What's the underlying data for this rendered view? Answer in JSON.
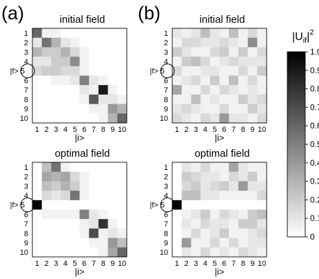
{
  "figure": {
    "panel_a_label": "(a)",
    "panel_b_label": "(b)"
  },
  "colorbar": {
    "label": "|Uᵢf|²",
    "label_main": "|U",
    "label_sub": "if",
    "label_close": "|",
    "label_sup": "2",
    "ticks": [
      "1.0",
      "0.9",
      "0.8",
      "0.7",
      "0.6",
      "0.5",
      "0.4",
      "0.3",
      "0.2",
      "0.1",
      "0"
    ],
    "range": [
      0,
      1
    ],
    "colormap": [
      "#ffffff",
      "#000000"
    ]
  },
  "chart_data": [
    {
      "type": "heatmap",
      "panel": "(a)",
      "title": "initial field",
      "xlabel": "|i>",
      "ylabel": "",
      "marked_row_label": "|f> 5",
      "x_ticks": [
        "1",
        "2",
        "3",
        "4",
        "5",
        "6",
        "7",
        "8",
        "9",
        "10"
      ],
      "y_ticks": [
        "1",
        "2",
        "3",
        "4",
        "5",
        "6",
        "7",
        "8",
        "9",
        "10"
      ],
      "circle_marker_row": 5,
      "values": [
        [
          0.6,
          0.05,
          0.05,
          0.0,
          0.0,
          0.0,
          0.0,
          0.0,
          0.0,
          0.0
        ],
        [
          0.1,
          0.55,
          0.3,
          0.1,
          0.05,
          0.0,
          0.0,
          0.0,
          0.0,
          0.0
        ],
        [
          0.3,
          0.2,
          0.2,
          0.3,
          0.15,
          0.05,
          0.0,
          0.0,
          0.0,
          0.0
        ],
        [
          0.1,
          0.1,
          0.2,
          0.2,
          0.45,
          0.05,
          0.0,
          0.0,
          0.0,
          0.0
        ],
        [
          0.15,
          0.2,
          0.2,
          0.15,
          0.15,
          0.05,
          0.0,
          0.0,
          0.0,
          0.0
        ],
        [
          0.0,
          0.0,
          0.05,
          0.05,
          0.1,
          0.5,
          0.1,
          0.05,
          0.0,
          0.0
        ],
        [
          0.0,
          0.0,
          0.0,
          0.0,
          0.0,
          0.1,
          0.05,
          0.9,
          0.05,
          0.0
        ],
        [
          0.0,
          0.0,
          0.0,
          0.0,
          0.0,
          0.05,
          0.65,
          0.1,
          0.1,
          0.05
        ],
        [
          0.0,
          0.0,
          0.0,
          0.0,
          0.0,
          0.0,
          0.05,
          0.05,
          0.4,
          0.3
        ],
        [
          0.0,
          0.0,
          0.0,
          0.0,
          0.0,
          0.0,
          0.0,
          0.05,
          0.3,
          0.6
        ]
      ]
    },
    {
      "type": "heatmap",
      "panel": "(b)",
      "title": "initial field",
      "xlabel": "|i>",
      "ylabel": "",
      "marked_row_label": "|f> 5",
      "x_ticks": [
        "1",
        "2",
        "3",
        "4",
        "5",
        "6",
        "7",
        "8",
        "9",
        "10"
      ],
      "y_ticks": [
        "1",
        "2",
        "3",
        "4",
        "5",
        "6",
        "7",
        "8",
        "9",
        "10"
      ],
      "circle_marker_row": 5,
      "values": [
        [
          0.1,
          0.05,
          0.1,
          0.25,
          0.1,
          0.05,
          0.25,
          0.05,
          0.15,
          0.05
        ],
        [
          0.05,
          0.15,
          0.15,
          0.1,
          0.1,
          0.15,
          0.1,
          0.05,
          0.45,
          0.05
        ],
        [
          0.2,
          0.1,
          0.05,
          0.05,
          0.15,
          0.2,
          0.05,
          0.2,
          0.05,
          0.15
        ],
        [
          0.05,
          0.2,
          0.25,
          0.15,
          0.05,
          0.1,
          0.15,
          0.1,
          0.1,
          0.1
        ],
        [
          0.15,
          0.05,
          0.05,
          0.1,
          0.1,
          0.05,
          0.05,
          0.15,
          0.05,
          0.2
        ],
        [
          0.05,
          0.1,
          0.15,
          0.05,
          0.2,
          0.05,
          0.25,
          0.05,
          0.15,
          0.05
        ],
        [
          0.35,
          0.05,
          0.05,
          0.15,
          0.05,
          0.15,
          0.1,
          0.05,
          0.1,
          0.05
        ],
        [
          0.05,
          0.05,
          0.25,
          0.05,
          0.1,
          0.05,
          0.05,
          0.2,
          0.1,
          0.15
        ],
        [
          0.1,
          0.15,
          0.1,
          0.05,
          0.05,
          0.15,
          0.05,
          0.05,
          0.2,
          0.1
        ],
        [
          0.15,
          0.1,
          0.05,
          0.15,
          0.1,
          0.4,
          0.1,
          0.1,
          0.05,
          0.15
        ]
      ]
    },
    {
      "type": "heatmap",
      "panel": "(a)",
      "title": "optimal field",
      "xlabel": "|i>",
      "ylabel": "",
      "marked_row_label": "|f> 5",
      "x_ticks": [
        "1",
        "2",
        "3",
        "4",
        "5",
        "6",
        "7",
        "8",
        "9",
        "10"
      ],
      "y_ticks": [
        "1",
        "2",
        "3",
        "4",
        "5",
        "6",
        "7",
        "8",
        "9",
        "10"
      ],
      "circle_marker_row": 5,
      "values": [
        [
          0.0,
          0.25,
          0.55,
          0.05,
          0.0,
          0.0,
          0.0,
          0.0,
          0.0,
          0.0
        ],
        [
          0.0,
          0.35,
          0.3,
          0.35,
          0.15,
          0.05,
          0.0,
          0.0,
          0.0,
          0.0
        ],
        [
          0.0,
          0.25,
          0.2,
          0.3,
          0.2,
          0.05,
          0.0,
          0.0,
          0.0,
          0.0
        ],
        [
          0.0,
          0.15,
          0.1,
          0.15,
          0.55,
          0.05,
          0.0,
          0.0,
          0.0,
          0.0
        ],
        [
          0.98,
          0.0,
          0.0,
          0.0,
          0.0,
          0.0,
          0.0,
          0.0,
          0.0,
          0.0
        ],
        [
          0.0,
          0.05,
          0.05,
          0.05,
          0.05,
          0.5,
          0.1,
          0.05,
          0.0,
          0.0
        ],
        [
          0.0,
          0.0,
          0.0,
          0.0,
          0.0,
          0.05,
          0.1,
          0.8,
          0.05,
          0.0
        ],
        [
          0.0,
          0.0,
          0.0,
          0.0,
          0.0,
          0.05,
          0.7,
          0.05,
          0.1,
          0.05
        ],
        [
          0.0,
          0.0,
          0.0,
          0.0,
          0.0,
          0.0,
          0.05,
          0.05,
          0.4,
          0.25
        ],
        [
          0.0,
          0.0,
          0.0,
          0.0,
          0.0,
          0.0,
          0.0,
          0.05,
          0.35,
          0.6
        ]
      ]
    },
    {
      "type": "heatmap",
      "panel": "(b)",
      "title": "optimal field",
      "xlabel": "|i>",
      "ylabel": "",
      "marked_row_label": "|f> 5",
      "x_ticks": [
        "1",
        "2",
        "3",
        "4",
        "5",
        "6",
        "7",
        "8",
        "9",
        "10"
      ],
      "y_ticks": [
        "1",
        "2",
        "3",
        "4",
        "5",
        "6",
        "7",
        "8",
        "9",
        "10"
      ],
      "circle_marker_row": 5,
      "values": [
        [
          0.0,
          0.1,
          0.05,
          0.15,
          0.05,
          0.05,
          0.35,
          0.1,
          0.05,
          0.05
        ],
        [
          0.0,
          0.2,
          0.15,
          0.1,
          0.1,
          0.05,
          0.15,
          0.1,
          0.2,
          0.05
        ],
        [
          0.0,
          0.15,
          0.2,
          0.1,
          0.15,
          0.2,
          0.1,
          0.4,
          0.1,
          0.1
        ],
        [
          0.0,
          0.25,
          0.25,
          0.1,
          0.1,
          0.05,
          0.05,
          0.05,
          0.05,
          0.15
        ],
        [
          0.98,
          0.0,
          0.0,
          0.0,
          0.0,
          0.0,
          0.0,
          0.0,
          0.0,
          0.0
        ],
        [
          0.0,
          0.05,
          0.1,
          0.2,
          0.05,
          0.15,
          0.1,
          0.05,
          0.2,
          0.25
        ],
        [
          0.0,
          0.1,
          0.05,
          0.15,
          0.1,
          0.1,
          0.05,
          0.2,
          0.2,
          0.1
        ],
        [
          0.0,
          0.05,
          0.15,
          0.05,
          0.1,
          0.2,
          0.05,
          0.05,
          0.1,
          0.15
        ],
        [
          0.0,
          0.4,
          0.05,
          0.05,
          0.15,
          0.05,
          0.15,
          0.05,
          0.1,
          0.1
        ],
        [
          0.0,
          0.1,
          0.05,
          0.15,
          0.05,
          0.1,
          0.05,
          0.15,
          0.1,
          0.05
        ]
      ]
    }
  ]
}
